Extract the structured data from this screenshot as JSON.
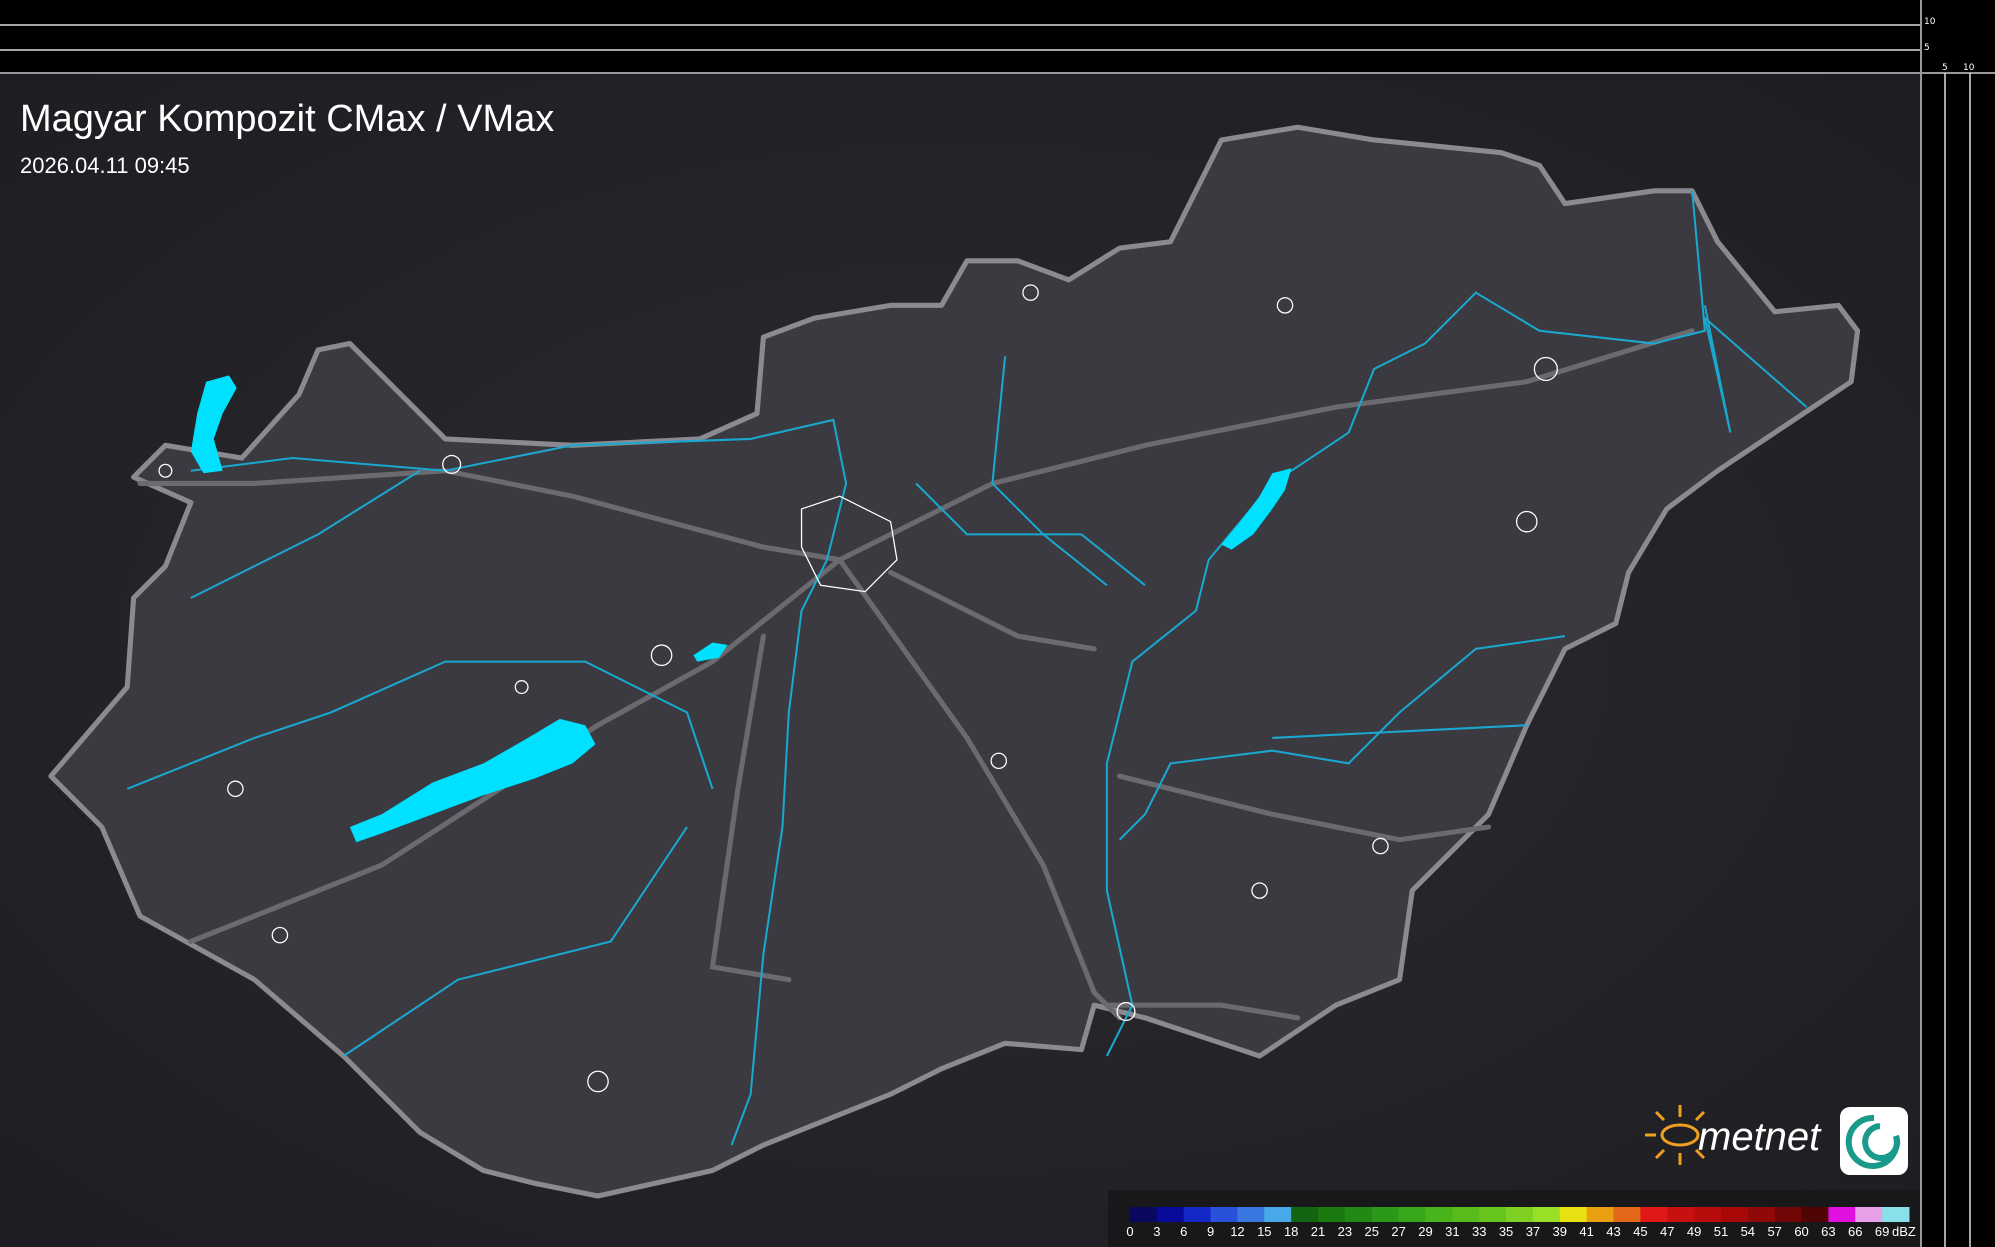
{
  "header": {
    "title": "Magyar Kompozit CMax / VMax",
    "datetime": "2026.04.11 09:45"
  },
  "scale_axes": {
    "vertical_labels": [
      "10",
      "5"
    ],
    "horizontal_labels": [
      "5",
      "10"
    ]
  },
  "logo": {
    "text": "metnet",
    "sun_color": "#f0a020",
    "icon_color": "#1a9a8a"
  },
  "legend": {
    "unit": "dBZ",
    "labels": [
      "0",
      "3",
      "6",
      "9",
      "12",
      "15",
      "18",
      "21",
      "23",
      "25",
      "27",
      "29",
      "31",
      "33",
      "35",
      "37",
      "39",
      "41",
      "43",
      "45",
      "47",
      "49",
      "51",
      "54",
      "57",
      "60",
      "63",
      "66",
      "69"
    ],
    "colors": [
      "#08085e",
      "#0a0a9a",
      "#1428c8",
      "#2850d8",
      "#3878e0",
      "#48a8e8",
      "#146414",
      "#1a7a10",
      "#228a12",
      "#2a9818",
      "#38a81a",
      "#48b41c",
      "#58bc1c",
      "#68c41e",
      "#80d024",
      "#98e028",
      "#e8e010",
      "#e8a010",
      "#e06818",
      "#e01818",
      "#c81010",
      "#b80c0c",
      "#a80808",
      "#900808",
      "#700606",
      "#500404",
      "#e010e0",
      "#e8a0e8",
      "#88e0e8"
    ]
  },
  "map": {
    "water_color": "#00e0ff",
    "river_color": "#1aa8d0",
    "land_color": "#38383e",
    "border_color": "#8a8a90"
  }
}
